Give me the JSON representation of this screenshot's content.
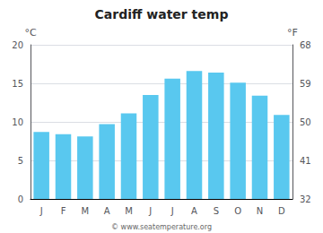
{
  "chart_data": {
    "type": "bar",
    "title": "Cardiff water temp",
    "categories": [
      "J",
      "F",
      "M",
      "A",
      "M",
      "J",
      "J",
      "A",
      "S",
      "O",
      "N",
      "D"
    ],
    "values": [
      8.7,
      8.4,
      8.1,
      9.7,
      11.1,
      13.5,
      15.6,
      16.6,
      16.4,
      15.1,
      13.4,
      10.9
    ],
    "color": "#59c8ef",
    "ylabel": "°C",
    "ylim": [
      0,
      20
    ],
    "yticks": [
      0,
      5,
      10,
      15,
      20
    ],
    "y2label": "°F",
    "y2lim": [
      32,
      68
    ],
    "y2ticks": [
      32,
      41,
      50,
      59,
      68
    ],
    "annotations": [
      "© www.seatemperature.org"
    ],
    "grid": true
  }
}
